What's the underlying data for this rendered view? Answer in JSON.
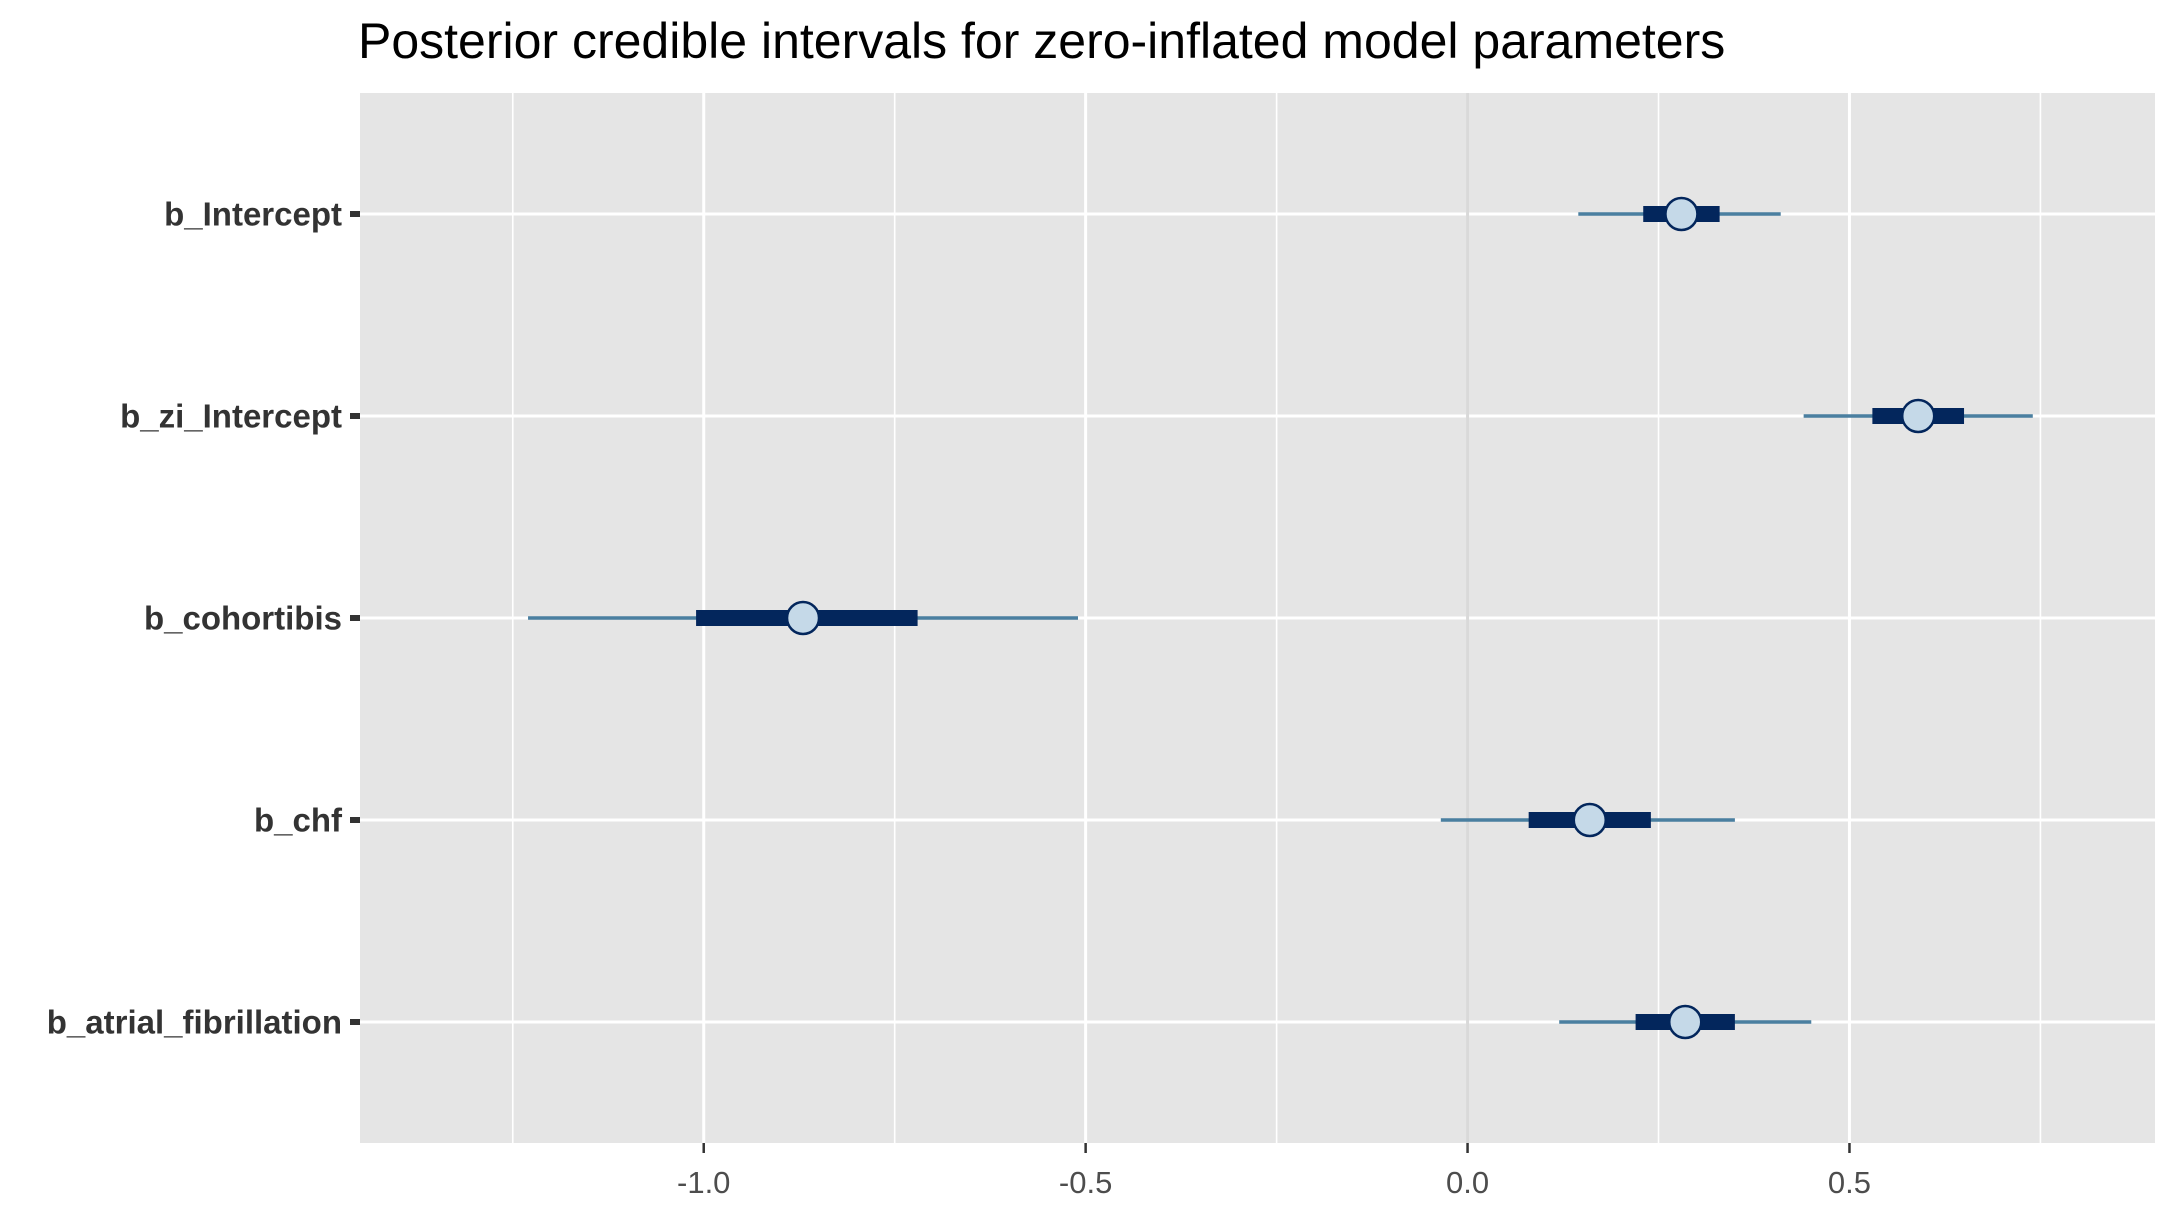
{
  "chart_data": {
    "type": "interval",
    "title": "Posterior credible intervals for zero-inflated model parameters",
    "xlabel": "",
    "ylabel": "",
    "xlim": [
      -1.45,
      0.9
    ],
    "x_ticks": [
      -1.0,
      -0.5,
      0.0,
      0.5
    ],
    "x_tick_labels": [
      "-1.0",
      "-0.5",
      "0.0",
      "0.5"
    ],
    "x_minor_ticks": [
      -1.25,
      -0.75,
      -0.25,
      0.25,
      0.75
    ],
    "vline": 0.0,
    "grid": true,
    "parameters": [
      {
        "label": "b_Intercept",
        "median": 0.28,
        "inner": [
          0.23,
          0.33
        ],
        "outer": [
          0.145,
          0.41
        ]
      },
      {
        "label": "b_zi_Intercept",
        "median": 0.59,
        "inner": [
          0.53,
          0.65
        ],
        "outer": [
          0.44,
          0.74
        ]
      },
      {
        "label": "b_cohortibis",
        "median": -0.87,
        "inner": [
          -1.01,
          -0.72
        ],
        "outer": [
          -1.23,
          -0.51
        ]
      },
      {
        "label": "b_chf",
        "median": 0.16,
        "inner": [
          0.08,
          0.24
        ],
        "outer": [
          -0.035,
          0.35
        ]
      },
      {
        "label": "b_atrial_fibrillation",
        "median": 0.285,
        "inner": [
          0.22,
          0.35
        ],
        "outer": [
          0.12,
          0.45
        ]
      }
    ],
    "colors": {
      "panel": "#e5e5e5",
      "grid": "#ffffff",
      "vline": "#d9d9d9",
      "outer_line": "#4a7fa0",
      "inner_line": "#03265c",
      "point_fill": "#c5d9e8",
      "point_stroke": "#03265c",
      "axis_text_y": "#333333",
      "axis_text_x": "#4d4d4d"
    }
  }
}
